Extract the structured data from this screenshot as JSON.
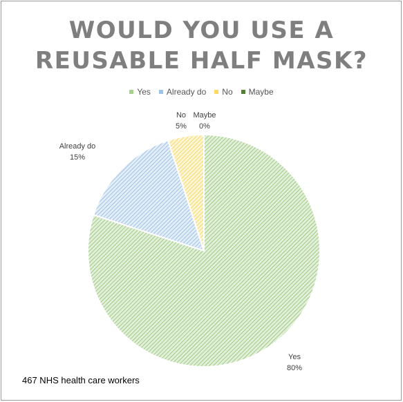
{
  "chart_data": {
    "type": "pie",
    "title_lines": [
      "WOULD YOU USE A",
      "REUSABLE HALF MASK?"
    ],
    "legend_position": "top",
    "categories": [
      "Yes",
      "Already do",
      "No",
      "Maybe"
    ],
    "values": [
      80,
      15,
      5,
      0
    ],
    "value_labels": [
      "80%",
      "15%",
      "5%",
      "0%"
    ],
    "colors": [
      "#a9d18e",
      "#9dc3e6",
      "#ffd966",
      "#548235"
    ]
  },
  "footnote": "467 NHS health care workers"
}
